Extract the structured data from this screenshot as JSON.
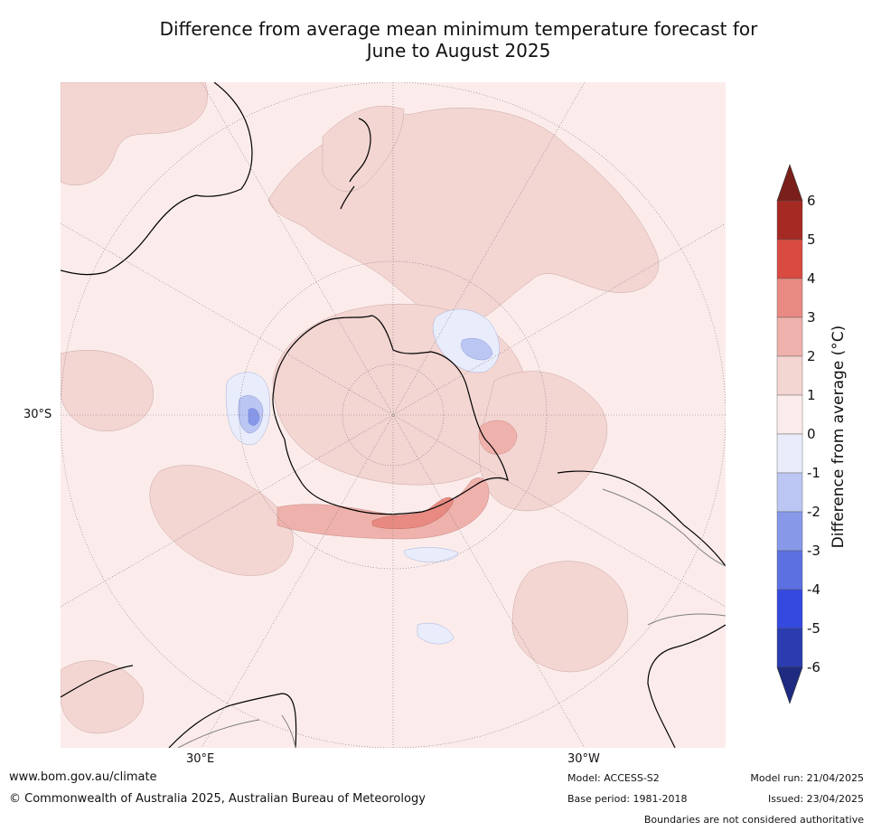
{
  "title": {
    "line1": "Difference from average mean minimum temperature forecast for",
    "line2": "June to August 2025"
  },
  "map": {
    "projection": "south polar stereographic",
    "lat_label": "30°S",
    "lon_labels": [
      "30°E",
      "30°W"
    ],
    "colors": {
      "ocean_background": "#fbeceb",
      "land_outline": "#000000",
      "boundary_lines": "#7f7f7f",
      "graticule": "#777777"
    }
  },
  "colorbar": {
    "label": "Difference from average (°C)",
    "ticks": [
      "6",
      "5",
      "4",
      "3",
      "2",
      "1",
      "0",
      "-1",
      "-2",
      "-3",
      "-4",
      "-5",
      "-6"
    ],
    "bins": [
      {
        "range": [
          5,
          6
        ],
        "color": "#a52a23"
      },
      {
        "range": [
          4,
          5
        ],
        "color": "#d94a40"
      },
      {
        "range": [
          3,
          4
        ],
        "color": "#e88a82"
      },
      {
        "range": [
          2,
          3
        ],
        "color": "#efb1ab"
      },
      {
        "range": [
          1,
          2
        ],
        "color": "#f3d5d2"
      },
      {
        "range": [
          0,
          1
        ],
        "color": "#fbeceb"
      },
      {
        "range": [
          -1,
          0
        ],
        "color": "#e8ecfb"
      },
      {
        "range": [
          -2,
          -1
        ],
        "color": "#bcc6f2"
      },
      {
        "range": [
          -3,
          -2
        ],
        "color": "#8898e9"
      },
      {
        "range": [
          -4,
          -3
        ],
        "color": "#5c70e2"
      },
      {
        "range": [
          -5,
          -4
        ],
        "color": "#3349e0"
      },
      {
        "range": [
          -6,
          -5
        ],
        "color": "#2a3caf"
      }
    ],
    "extend_max_color": "#7a1f1a",
    "extend_min_color": "#1f2b80"
  },
  "footer": {
    "url": "www.bom.gov.au/climate",
    "copyright": "© Commonwealth of Australia 2025, Australian Bureau of Meteorology",
    "model": "Model: ACCESS-S2",
    "base_period": "Base period: 1981-2018",
    "model_run": "Model run: 21/04/2025",
    "issued": "Issued: 23/04/2025",
    "disclaimer": "Boundaries are not considered authoritative"
  }
}
